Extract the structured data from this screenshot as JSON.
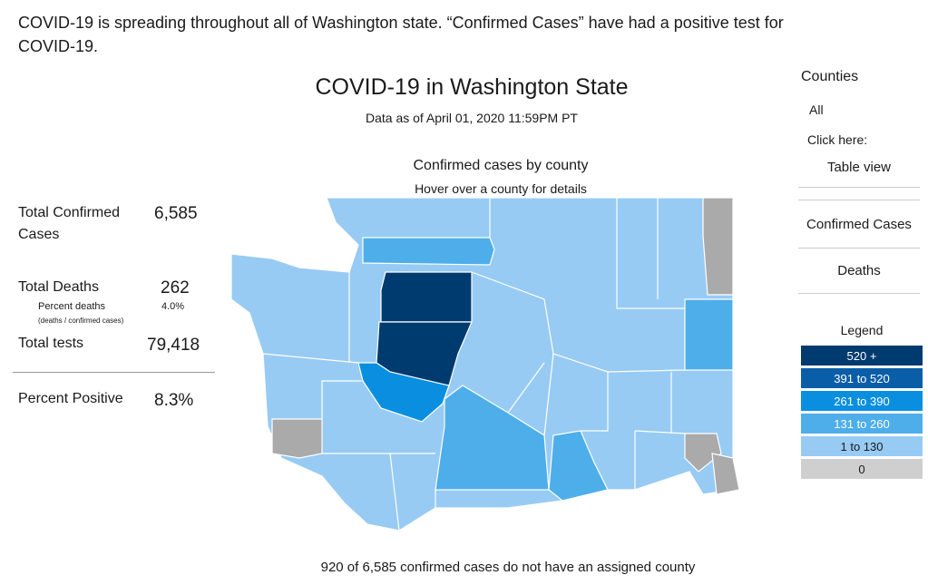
{
  "intro": "COVID-19 is spreading throughout all of Washington state. “Confirmed Cases” have had a positive test for COVID-19.",
  "title": "COVID-19 in Washington State",
  "subtitle": "Data as of April 01, 2020 11:59PM PT",
  "map": {
    "title": "Confirmed cases by county",
    "hint": "Hover over a county for details"
  },
  "stats": {
    "confirmed": {
      "label": "Total Confirmed Cases",
      "value": "6,585"
    },
    "deaths": {
      "label": "Total Deaths",
      "value": "262",
      "percent_label": "Percent deaths",
      "percent_value": "4.0%",
      "percent_note": "(deaths / confirmed cases)"
    },
    "tests": {
      "label": "Total tests",
      "value": "79,418"
    },
    "positive": {
      "label": "Percent Positive",
      "value": "8.3%"
    }
  },
  "sidebar": {
    "heading": "Counties",
    "selected": "All",
    "prompt": "Click here:",
    "buttons": [
      "Table view",
      "Confirmed Cases",
      "Deaths"
    ]
  },
  "legend": {
    "title": "Legend",
    "items": [
      {
        "label": "520 +",
        "color": "#003b70",
        "text_color": "#ffffff"
      },
      {
        "label": "391 to 520",
        "color": "#0a5ea8",
        "text_color": "#ffffff"
      },
      {
        "label": "261 to 390",
        "color": "#0a8fe0",
        "text_color": "#ffffff"
      },
      {
        "label": "131 to 260",
        "color": "#4daeea",
        "text_color": "#ffffff"
      },
      {
        "label": "1 to 130",
        "color": "#97cbf4",
        "text_color": "#1a1a1a"
      },
      {
        "label": "0",
        "color": "#cfcfcf",
        "text_color": "#1a1a1a"
      }
    ]
  },
  "footnote": "920 of 6,585 confirmed cases do not have an assigned county"
}
